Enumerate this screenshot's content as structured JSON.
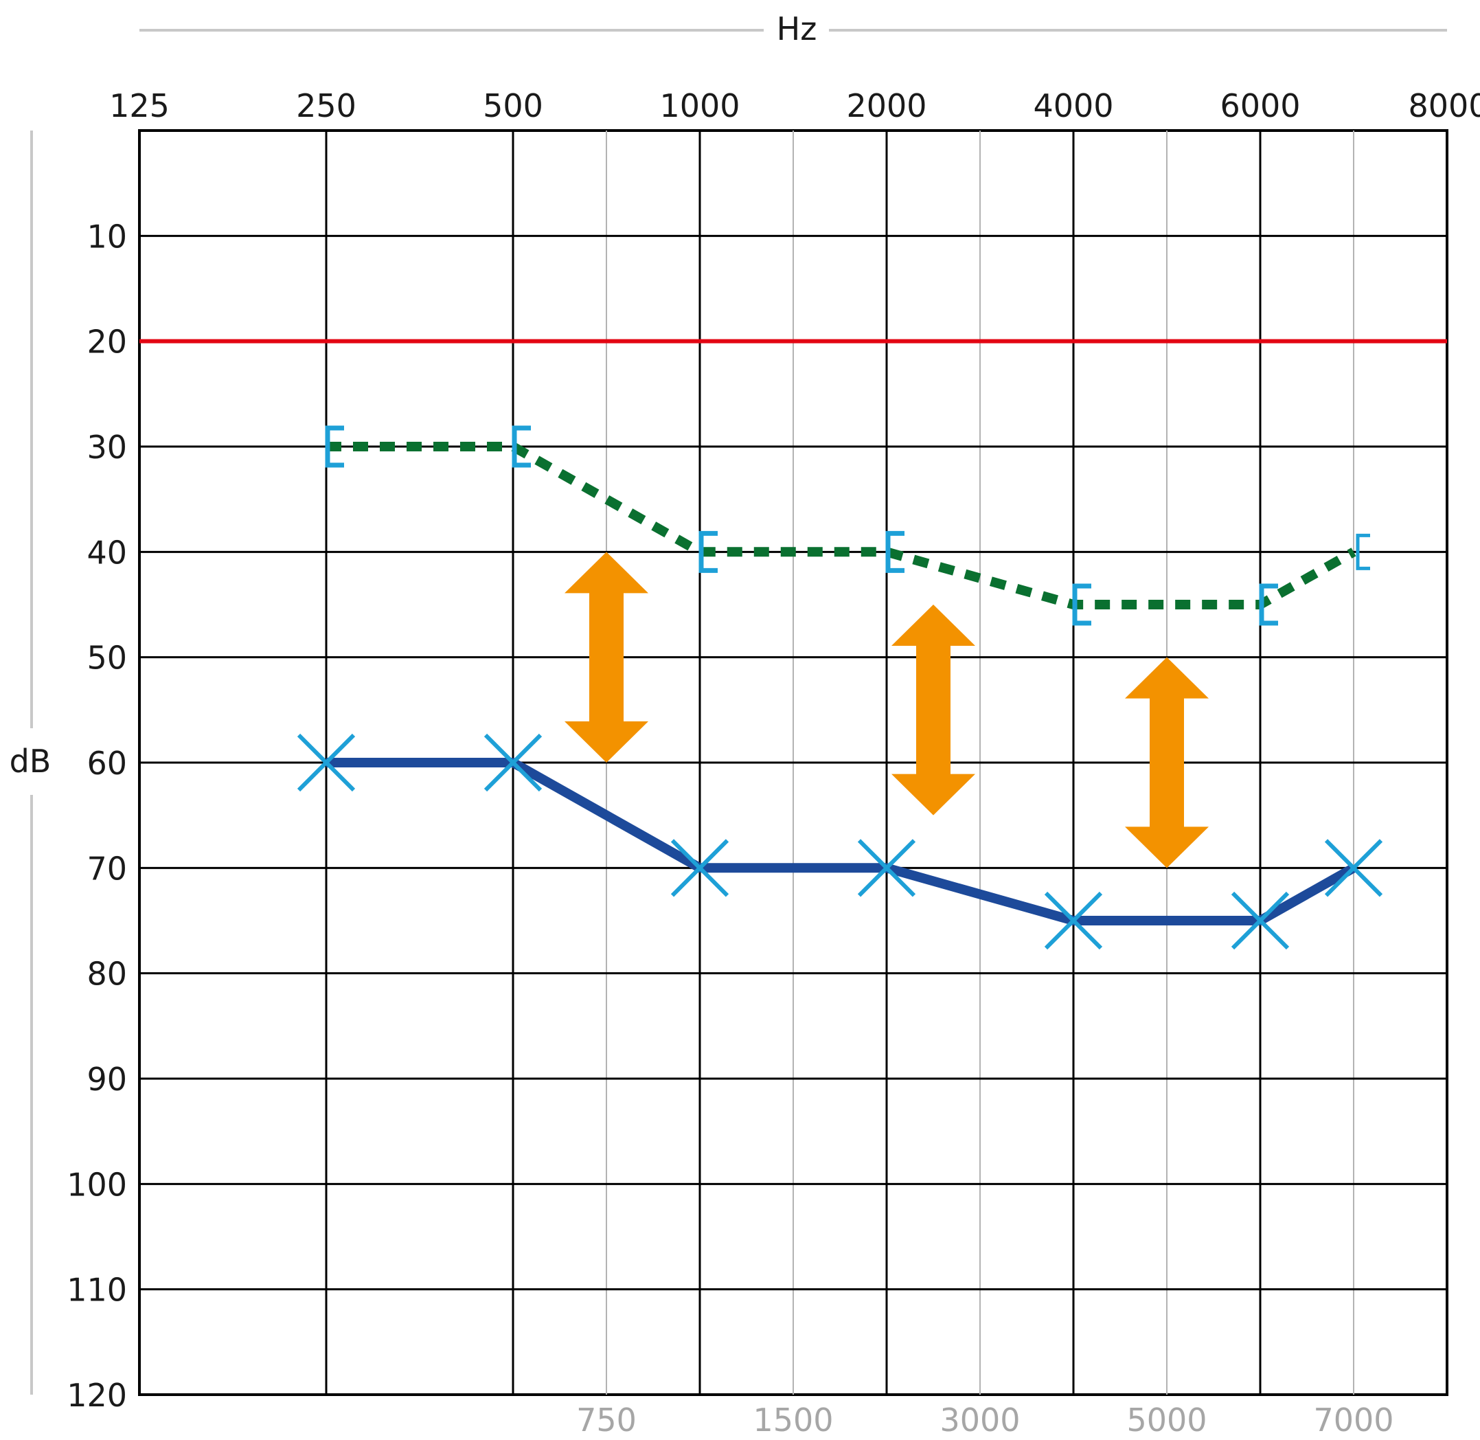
{
  "chart_data": {
    "type": "line",
    "title": "",
    "xlabel": "Hz",
    "ylabel": "dB",
    "x_scale": "octave",
    "x_major_ticks": [
      "125",
      "250",
      "500",
      "1000",
      "2000",
      "4000",
      "6000",
      "8000"
    ],
    "x_minor_ticks": [
      "750",
      "1500",
      "3000",
      "5000",
      "7000"
    ],
    "y_ticks": [
      "10",
      "20",
      "30",
      "40",
      "50",
      "60",
      "70",
      "80",
      "90",
      "100",
      "110",
      "120"
    ],
    "ylim": [
      0,
      120
    ],
    "y_inverted": true,
    "grid": true,
    "reference_line": {
      "y": 20,
      "color": "#e30613"
    },
    "series": [
      {
        "marker": "bracket",
        "line_style": "dotted",
        "line_color": "#0a7030",
        "marker_color": "#1ea0d7",
        "x": [
          250,
          500,
          1000,
          2000,
          4000,
          6000,
          7000
        ],
        "y": [
          30,
          30,
          40,
          40,
          45,
          45,
          40
        ]
      },
      {
        "marker": "cross",
        "line_style": "solid",
        "line_color": "#1d4a9a",
        "marker_color": "#1ea0d7",
        "x": [
          250,
          500,
          1000,
          2000,
          4000,
          6000,
          7000
        ],
        "y": [
          60,
          60,
          70,
          70,
          75,
          75,
          70
        ]
      }
    ],
    "annotations": [
      {
        "type": "double-arrow",
        "x": 750,
        "y_from": 40,
        "y_to": 60,
        "color": "#f39200"
      },
      {
        "type": "double-arrow",
        "x": 2500,
        "y_from": 45,
        "y_to": 65,
        "color": "#f39200"
      },
      {
        "type": "double-arrow",
        "x": 5000,
        "y_from": 50,
        "y_to": 70,
        "color": "#f39200"
      }
    ]
  }
}
